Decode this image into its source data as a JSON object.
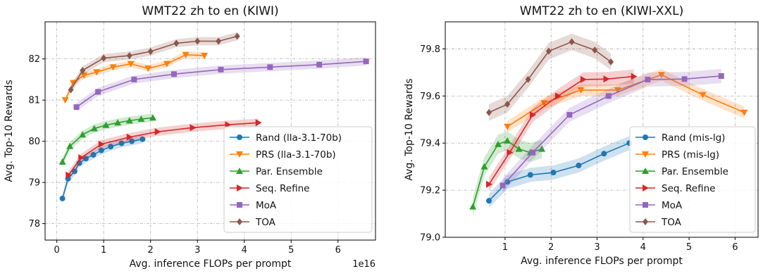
{
  "chart_data": [
    {
      "type": "line",
      "title": "WMT22 zh to en (KIWI)",
      "xlabel": "Avg. inference FLOPs per prompt",
      "ylabel": "Avg. Top-10 Rewards",
      "x_multiplier_label": "1e16",
      "xlim": [
        -0.25,
        6.8
      ],
      "ylim": [
        77.6,
        82.9
      ],
      "xticks": [
        0,
        1,
        2,
        3,
        4,
        5,
        6
      ],
      "yticks": [
        78,
        79,
        80,
        81,
        82
      ],
      "grid": true,
      "legend_position": "lower-right",
      "series": [
        {
          "name": "Rand (lla-3.1-70b)",
          "color": "#1f77b4",
          "marker": "circle",
          "band": 0.1,
          "points": [
            [
              0.12,
              78.61
            ],
            [
              0.24,
              79.09
            ],
            [
              0.38,
              79.27
            ],
            [
              0.48,
              79.47
            ],
            [
              0.62,
              79.58
            ],
            [
              0.78,
              79.67
            ],
            [
              0.95,
              79.78
            ],
            [
              1.15,
              79.87
            ],
            [
              1.38,
              79.95
            ],
            [
              1.6,
              80.0
            ],
            [
              1.83,
              80.05
            ]
          ]
        },
        {
          "name": "PRS (lla-3.1-70b)",
          "color": "#ff7f0e",
          "marker": "triangle-down",
          "band": 0.08,
          "points": [
            [
              0.18,
              81.0
            ],
            [
              0.35,
              81.42
            ],
            [
              0.58,
              81.6
            ],
            [
              0.85,
              81.68
            ],
            [
              1.2,
              81.8
            ],
            [
              1.58,
              81.88
            ],
            [
              1.95,
              81.77
            ],
            [
              2.35,
              81.88
            ],
            [
              2.75,
              82.1
            ],
            [
              3.15,
              82.08
            ]
          ]
        },
        {
          "name": "Par. Ensemble",
          "color": "#2ca02c",
          "marker": "triangle-up",
          "band": 0.1,
          "points": [
            [
              0.12,
              79.5
            ],
            [
              0.28,
              79.88
            ],
            [
              0.55,
              80.16
            ],
            [
              0.8,
              80.31
            ],
            [
              1.05,
              80.39
            ],
            [
              1.3,
              80.45
            ],
            [
              1.55,
              80.5
            ],
            [
              1.8,
              80.54
            ],
            [
              2.05,
              80.57
            ]
          ]
        },
        {
          "name": "Seq. Refine",
          "color": "#d62728",
          "marker": "triangle-right",
          "band": 0.1,
          "points": [
            [
              0.25,
              79.18
            ],
            [
              0.52,
              79.6
            ],
            [
              0.95,
              79.93
            ],
            [
              1.55,
              80.1
            ],
            [
              2.15,
              80.23
            ],
            [
              2.9,
              80.33
            ],
            [
              3.65,
              80.4
            ],
            [
              4.3,
              80.45
            ]
          ]
        },
        {
          "name": "MoA",
          "color": "#9467bd",
          "marker": "square",
          "band": 0.1,
          "points": [
            [
              0.42,
              80.83
            ],
            [
              0.88,
              81.2
            ],
            [
              1.65,
              81.5
            ],
            [
              2.5,
              81.63
            ],
            [
              3.5,
              81.74
            ],
            [
              4.55,
              81.8
            ],
            [
              5.6,
              81.86
            ],
            [
              6.6,
              81.94
            ]
          ]
        },
        {
          "name": "TOA",
          "color": "#8c564b",
          "marker": "diamond",
          "band": 0.1,
          "points": [
            [
              0.3,
              81.25
            ],
            [
              0.55,
              81.72
            ],
            [
              1.0,
              82.02
            ],
            [
              1.55,
              82.08
            ],
            [
              2.0,
              82.18
            ],
            [
              2.55,
              82.38
            ],
            [
              3.0,
              82.43
            ],
            [
              3.45,
              82.43
            ],
            [
              3.85,
              82.55
            ]
          ]
        }
      ]
    },
    {
      "type": "line",
      "title": "WMT22 zh to en (KIWI-XXL)",
      "xlabel": "Avg. inference FLOPs per prompt",
      "ylabel": "Avg. Top-10 Rewards",
      "xlim": [
        -0.3,
        6.5
      ],
      "ylim": [
        79.0,
        79.915
      ],
      "xticks": [
        1,
        2,
        3,
        4,
        5,
        6
      ],
      "yticks": [
        79.0,
        79.2,
        79.4,
        79.6,
        79.8
      ],
      "grid": true,
      "legend_position": "lower-right",
      "series": [
        {
          "name": "Rand (mis-lg)",
          "color": "#1f77b4",
          "marker": "circle",
          "band": 0.03,
          "points": [
            [
              0.65,
              79.155
            ],
            [
              1.05,
              79.235
            ],
            [
              1.55,
              79.265
            ],
            [
              2.05,
              79.275
            ],
            [
              2.6,
              79.305
            ],
            [
              3.15,
              79.355
            ],
            [
              3.7,
              79.4
            ]
          ]
        },
        {
          "name": "PRS (mis-lg)",
          "color": "#ff7f0e",
          "marker": "triangle-down",
          "band": 0.025,
          "points": [
            [
              1.05,
              79.47
            ],
            [
              1.85,
              79.57
            ],
            [
              2.65,
              79.625
            ],
            [
              3.45,
              79.625
            ],
            [
              4.4,
              79.69
            ],
            [
              5.3,
              79.605
            ],
            [
              6.2,
              79.53
            ]
          ]
        },
        {
          "name": "Par. Ensemble",
          "color": "#2ca02c",
          "marker": "triangle-up",
          "band": 0.04,
          "points": [
            [
              0.3,
              79.13
            ],
            [
              0.55,
              79.3
            ],
            [
              0.85,
              79.395
            ],
            [
              1.05,
              79.41
            ],
            [
              1.3,
              79.375
            ],
            [
              1.55,
              79.36
            ],
            [
              1.8,
              79.375
            ]
          ]
        },
        {
          "name": "Seq. Refine",
          "color": "#d62728",
          "marker": "triangle-right",
          "band": 0.03,
          "points": [
            [
              0.65,
              79.225
            ],
            [
              1.1,
              79.36
            ],
            [
              1.6,
              79.52
            ],
            [
              2.15,
              79.6
            ],
            [
              2.7,
              79.67
            ],
            [
              3.2,
              79.672
            ],
            [
              3.8,
              79.683
            ]
          ]
        },
        {
          "name": "MoA",
          "color": "#9467bd",
          "marker": "square",
          "band": 0.03,
          "points": [
            [
              0.95,
              79.22
            ],
            [
              1.6,
              79.36
            ],
            [
              2.4,
              79.52
            ],
            [
              3.25,
              79.6
            ],
            [
              4.1,
              79.67
            ],
            [
              4.9,
              79.672
            ],
            [
              5.7,
              79.685
            ]
          ]
        },
        {
          "name": "TOA",
          "color": "#8c564b",
          "marker": "diamond",
          "band": 0.035,
          "points": [
            [
              0.65,
              79.53
            ],
            [
              1.05,
              79.565
            ],
            [
              1.5,
              79.67
            ],
            [
              1.95,
              79.79
            ],
            [
              2.45,
              79.83
            ],
            [
              2.95,
              79.795
            ],
            [
              3.3,
              79.745
            ]
          ]
        }
      ]
    }
  ]
}
